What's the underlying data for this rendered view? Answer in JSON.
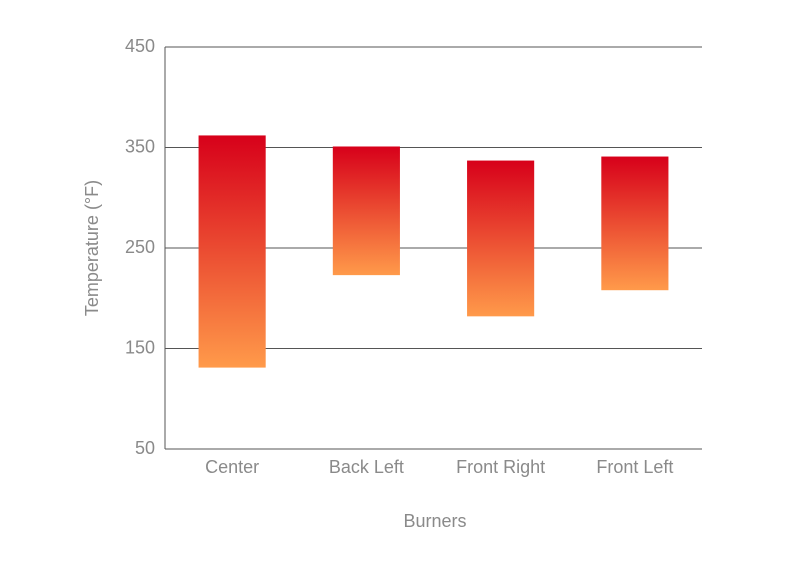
{
  "chart_data": {
    "type": "range_bar",
    "x_label": "Burners",
    "y_label": "Temperature (°F)",
    "categories": [
      "Center",
      "Back Left",
      "Front Right",
      "Front Left"
    ],
    "low": [
      131,
      223,
      182,
      208
    ],
    "high": [
      362,
      351,
      337,
      341
    ],
    "color_top": "#d7001a",
    "color_bottom": "#ff9a4a",
    "ylim": [
      50,
      450
    ],
    "yticks": [
      50,
      150,
      250,
      350,
      450
    ],
    "grid": true
  }
}
